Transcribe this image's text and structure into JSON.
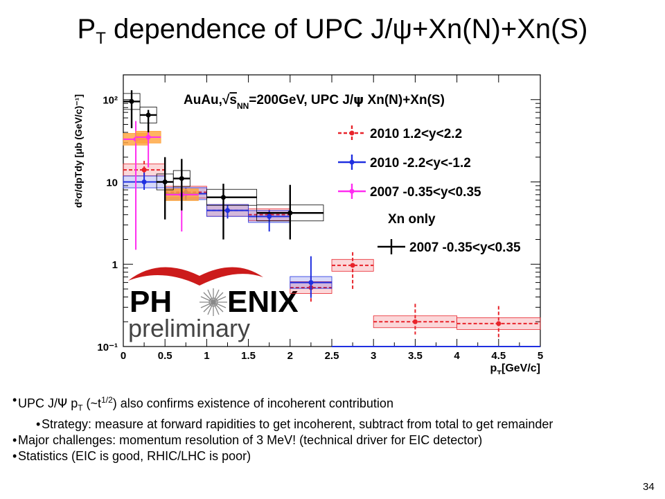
{
  "slide": {
    "title_main": "P",
    "title_sub": "T",
    "title_rest": " dependence of UPC J/ψ+Xn(N)+Xn(S)",
    "bullets": [
      {
        "level": 1,
        "prefix": "UPC J/",
        "psi": "Ψ",
        "mid": " p",
        "sub": "T",
        "mid2": " (~t",
        "sup": "1/2",
        "rest": ") also confirms existence of incoherent contribution"
      },
      {
        "level": 2,
        "text": "Strategy: measure at forward rapidities to get incoherent, subtract from total to get remainder"
      },
      {
        "level": 1,
        "text": "Major challenges: momentum resolution of 3 MeV! (technical driver for EIC detector)"
      },
      {
        "level": 1,
        "text": "Statistics (EIC is good, RHIC/LHC is poor)"
      }
    ],
    "slide_number": "34"
  },
  "logo": {
    "top": "PH",
    "top2": "ENIX",
    "bottom": "preliminary"
  },
  "chart_data": {
    "type": "scatter",
    "title": "AuAu,√sNN=200GeV, UPC J/ψ Xn(N)+Xn(S)",
    "title_parts": {
      "a": "AuAu,",
      "b": "s",
      "c": "NN",
      "d": "=200GeV, UPC J/",
      "e": "ψ",
      "f": " Xn(N)+Xn(S)"
    },
    "xlabel": "pT[GeV/c]",
    "xlabel_parts": {
      "p": "p",
      "sub": "T",
      "rest": "[GeV/c]"
    },
    "ylabel_parts": {
      "num": "d²σ",
      "den": "dpTdy",
      "unit": "[μb (GeV/c)⁻¹]"
    },
    "xlim": [
      0,
      5
    ],
    "ylim": [
      0.1,
      200
    ],
    "yscale": "log",
    "xticks": [
      "0",
      "0.5",
      "1",
      "1.5",
      "2",
      "2.5",
      "3",
      "3.5",
      "4",
      "4.5",
      "5"
    ],
    "yticks": [
      {
        "v": 1,
        "label": "1"
      },
      {
        "v": 10,
        "label": "10"
      },
      {
        "v": 100,
        "label": "10²"
      }
    ],
    "legend_placement": "top-right",
    "series": [
      {
        "name": "2010 1.2<y<2.2",
        "color": "#e8232a",
        "style": "dashed",
        "points": [
          {
            "x": 0.25,
            "y": 14,
            "xl": 0.0,
            "xh": 0.5,
            "ylo": 11,
            "yhi": 18
          },
          {
            "x": 0.75,
            "y": 7.5,
            "xl": 0.5,
            "xh": 1.0,
            "ylo": 6.5,
            "yhi": 8.5
          },
          {
            "x": 1.25,
            "y": 4.5,
            "xl": 1.0,
            "xh": 1.5,
            "ylo": 3.6,
            "yhi": 5.2
          },
          {
            "x": 1.75,
            "y": 4.0,
            "xl": 1.5,
            "xh": 2.0,
            "ylo": 3.3,
            "yhi": 4.6
          },
          {
            "x": 2.25,
            "y": 0.52,
            "xl": 2.0,
            "xh": 2.5,
            "ylo": 0.35,
            "yhi": 0.72
          },
          {
            "x": 2.75,
            "y": 0.97,
            "xl": 2.5,
            "xh": 3.0,
            "ylo": 0.5,
            "yhi": 1.4
          },
          {
            "x": 3.5,
            "y": 0.2,
            "xl": 3.0,
            "xh": 4.0,
            "ylo": 0.14,
            "yhi": 0.33
          },
          {
            "x": 4.5,
            "y": 0.19,
            "xl": 4.0,
            "xh": 5.0,
            "ylo": 0.13,
            "yhi": 0.31
          }
        ]
      },
      {
        "name": "2010 -2.2<y<-1.2",
        "color": "#1f2fe0",
        "style": "solid",
        "points": [
          {
            "x": 0.25,
            "y": 10,
            "xl": 0.0,
            "xh": 0.5,
            "ylo": 8,
            "yhi": 13
          },
          {
            "x": 0.75,
            "y": 7.2,
            "xl": 0.5,
            "xh": 1.0,
            "ylo": 6,
            "yhi": 8.5
          },
          {
            "x": 1.25,
            "y": 4.5,
            "xl": 1.0,
            "xh": 1.5,
            "ylo": 3.6,
            "yhi": 5.2
          },
          {
            "x": 1.75,
            "y": 3.8,
            "xl": 1.5,
            "xh": 2.0,
            "ylo": 2.5,
            "yhi": 4.5
          },
          {
            "x": 2.25,
            "y": 0.6,
            "xl": 2.0,
            "xh": 2.5,
            "ylo": 0.39,
            "yhi": 1.25
          },
          {
            "x": 3.75,
            "y": 0.1,
            "xl": 2.5,
            "xh": 5.0,
            "ylo": 0.1,
            "yhi": 0.1
          }
        ]
      },
      {
        "name": "2007 -0.35<y<0.35",
        "color": "#ff2cf0",
        "style": "solid",
        "points": [
          {
            "x": 0.15,
            "y": 33,
            "xl": 0.0,
            "xh": 0.3,
            "ylo": 1.5,
            "yhi": 55
          },
          {
            "x": 0.3,
            "y": 35,
            "xl": 0.15,
            "xh": 0.45,
            "ylo": 15,
            "yhi": 55
          },
          {
            "x": 0.7,
            "y": 7,
            "xl": 0.5,
            "xh": 0.9,
            "ylo": 2.5,
            "yhi": 10
          }
        ]
      },
      {
        "name": "2007 -0.35<y<0.35",
        "legend_group": "Xn only",
        "color": "#000000",
        "style": "solid",
        "points": [
          {
            "x": 0.1,
            "y": 95,
            "xl": 0.0,
            "xh": 0.2,
            "ylo": 45,
            "yhi": 130
          },
          {
            "x": 0.3,
            "y": 65,
            "xl": 0.2,
            "xh": 0.4,
            "ylo": 40,
            "yhi": 75
          },
          {
            "x": 0.5,
            "y": 10,
            "xl": 0.4,
            "xh": 0.6,
            "ylo": 3.5,
            "yhi": 20
          },
          {
            "x": 0.7,
            "y": 11,
            "xl": 0.6,
            "xh": 0.8,
            "ylo": 4.5,
            "yhi": 19
          },
          {
            "x": 1.2,
            "y": 6.5,
            "xl": 1.0,
            "xh": 1.6,
            "ylo": 2.0,
            "yhi": 9.5
          },
          {
            "x": 2.0,
            "y": 4.2,
            "xl": 1.6,
            "xh": 2.4,
            "ylo": 2.0,
            "yhi": 9.2
          }
        ]
      }
    ],
    "legend": [
      {
        "label": "2010 1.2<y<2.2",
        "color": "#e8232a",
        "style": "dashed"
      },
      {
        "label": "2010 -2.2<y<-1.2",
        "color": "#1f2fe0",
        "style": "solid"
      },
      {
        "label": "2007 -0.35<y<0.35",
        "color": "#ff2cf0",
        "style": "solid"
      },
      {
        "label": "Xn only",
        "color": "",
        "style": "header"
      },
      {
        "label": "2007 -0.35<y<0.35",
        "color": "#000000",
        "style": "solid"
      }
    ]
  }
}
